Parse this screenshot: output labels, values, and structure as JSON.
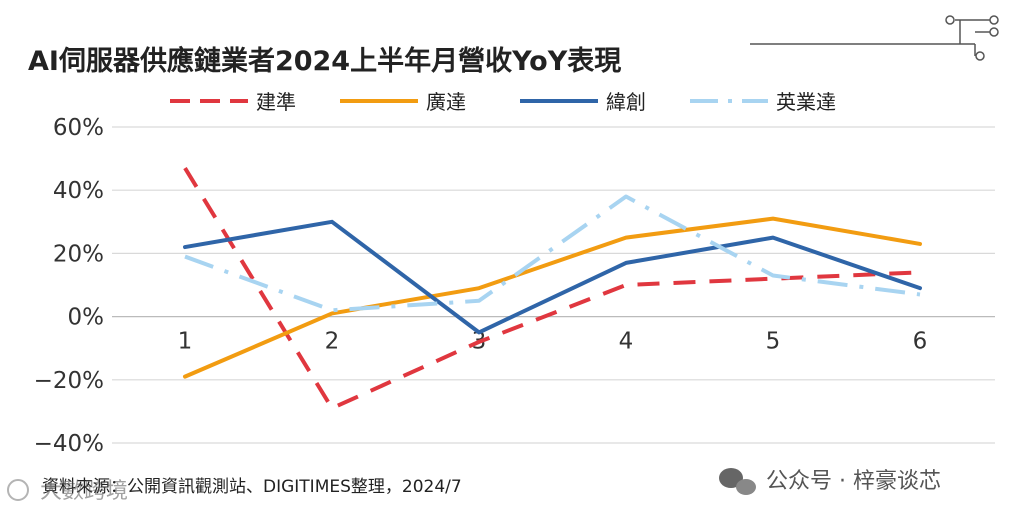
{
  "chart_data": {
    "type": "line",
    "title": "AI伺服器供應鏈業者2024上半年月營收YoY表現",
    "categories": [
      "1",
      "2",
      "3",
      "4",
      "5",
      "6"
    ],
    "xlabel": "",
    "ylabel": "",
    "ylim": [
      -40,
      60
    ],
    "yticks": [
      60,
      40,
      20,
      0,
      -20,
      -40
    ],
    "ytick_labels": [
      "60%",
      "40%",
      "20%",
      "0%",
      "−20%",
      "−40%"
    ],
    "grid": true,
    "legend_position": "top",
    "series": [
      {
        "name": "建準",
        "values": [
          47,
          -29,
          -8,
          10,
          12,
          14
        ],
        "color": "#e0373f",
        "style": "dashed"
      },
      {
        "name": "廣達",
        "values": [
          -19,
          1,
          9,
          25,
          31,
          23
        ],
        "color": "#f29c11",
        "style": "solid"
      },
      {
        "name": "緯創",
        "values": [
          22,
          30,
          -5,
          17,
          25,
          9
        ],
        "color": "#2f65a8",
        "style": "solid"
      },
      {
        "name": "英業達",
        "values": [
          19,
          2,
          5,
          38,
          13,
          7
        ],
        "color": "#a8d4f1",
        "style": "dashdot"
      }
    ]
  },
  "source_note": "資料來源：公開資訊觀測站、DIGITIMES整理，2024/7",
  "watermark_left": "大數跨境",
  "watermark_right": "公众号 · 梓豪谈芯"
}
